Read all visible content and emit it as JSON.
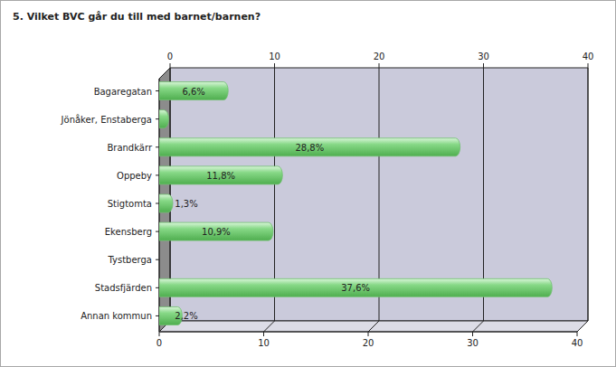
{
  "chart_data": {
    "type": "bar",
    "title": "5. Vilket BVC går du till med barnet/barnen?",
    "orientation": "horizontal",
    "categories": [
      "Bagaregatan",
      "Jönåker, Enstaberga",
      "Brandkärr",
      "Oppeby",
      "Stigtomta",
      "Ekensberg",
      "Tystberga",
      "Stadsfjärden",
      "Annan kommun"
    ],
    "values": [
      6.6,
      0.9,
      28.8,
      11.8,
      1.3,
      10.9,
      0,
      37.6,
      2.2
    ],
    "value_labels": [
      "6,6%",
      null,
      "28,8%",
      "11,8%",
      "1,3%",
      "10,9%",
      null,
      "37,6%",
      "2,2%"
    ],
    "data_labels": true,
    "color": "#86d886",
    "ylim": [
      0,
      40
    ],
    "yticks": [
      0,
      10,
      20,
      30,
      40
    ],
    "grid": true
  }
}
